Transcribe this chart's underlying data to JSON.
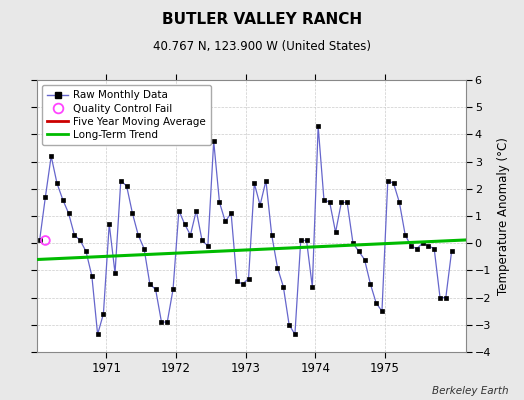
{
  "title": "BUTLER VALLEY RANCH",
  "subtitle": "40.767 N, 123.900 W (United States)",
  "ylabel": "Temperature Anomaly (°C)",
  "credit": "Berkeley Earth",
  "background_color": "#e8e8e8",
  "plot_bg_color": "#ffffff",
  "ylim": [
    -4,
    6
  ],
  "yticks": [
    -4,
    -3,
    -2,
    -1,
    0,
    1,
    2,
    3,
    4,
    5,
    6
  ],
  "xlim_start": 1970.0,
  "xlim_end": 1976.17,
  "xticks": [
    1971,
    1972,
    1973,
    1974,
    1975
  ],
  "months": [
    1970.042,
    1970.125,
    1970.208,
    1970.292,
    1970.375,
    1970.458,
    1970.542,
    1970.625,
    1970.708,
    1970.792,
    1970.875,
    1970.958,
    1971.042,
    1971.125,
    1971.208,
    1971.292,
    1971.375,
    1971.458,
    1971.542,
    1971.625,
    1971.708,
    1971.792,
    1971.875,
    1971.958,
    1972.042,
    1972.125,
    1972.208,
    1972.292,
    1972.375,
    1972.458,
    1972.542,
    1972.625,
    1972.708,
    1972.792,
    1972.875,
    1972.958,
    1973.042,
    1973.125,
    1973.208,
    1973.292,
    1973.375,
    1973.458,
    1973.542,
    1973.625,
    1973.708,
    1973.792,
    1973.875,
    1973.958,
    1974.042,
    1974.125,
    1974.208,
    1974.292,
    1974.375,
    1974.458,
    1974.542,
    1974.625,
    1974.708,
    1974.792,
    1974.875,
    1974.958,
    1975.042,
    1975.125,
    1975.208,
    1975.292,
    1975.375,
    1975.458,
    1975.542,
    1975.625,
    1975.708,
    1975.792,
    1975.875,
    1975.958
  ],
  "values": [
    0.1,
    1.7,
    3.2,
    2.2,
    1.6,
    1.1,
    0.3,
    0.1,
    -0.3,
    -1.2,
    -3.35,
    -2.6,
    0.7,
    -1.1,
    2.3,
    2.1,
    1.1,
    0.3,
    -0.2,
    -1.5,
    -1.7,
    -2.9,
    -2.9,
    -1.7,
    1.2,
    0.7,
    0.3,
    1.2,
    0.1,
    -0.1,
    3.75,
    1.5,
    0.8,
    1.1,
    -1.4,
    -1.5,
    -1.3,
    2.2,
    1.4,
    2.3,
    0.3,
    -0.9,
    -1.6,
    -3.0,
    -3.35,
    0.1,
    0.1,
    -1.6,
    4.3,
    1.6,
    1.5,
    0.4,
    1.5,
    1.5,
    0.0,
    -0.3,
    -0.6,
    -1.5,
    -2.2,
    -2.5,
    2.3,
    2.2,
    1.5,
    0.3,
    -0.1,
    -0.2,
    0.0,
    -0.1,
    -0.2,
    -2.0,
    -2.0,
    -0.3
  ],
  "qc_fail_x": [
    1970.125
  ],
  "qc_fail_y": [
    0.1
  ],
  "trend_x": [
    1970.0,
    1976.17
  ],
  "trend_y": [
    -0.6,
    0.12
  ],
  "line_color": "#6666cc",
  "marker_color": "#000000",
  "qc_color": "#ff44ff",
  "moving_avg_color": "#cc0000",
  "trend_color": "#00bb00",
  "grid_color": "#cccccc"
}
